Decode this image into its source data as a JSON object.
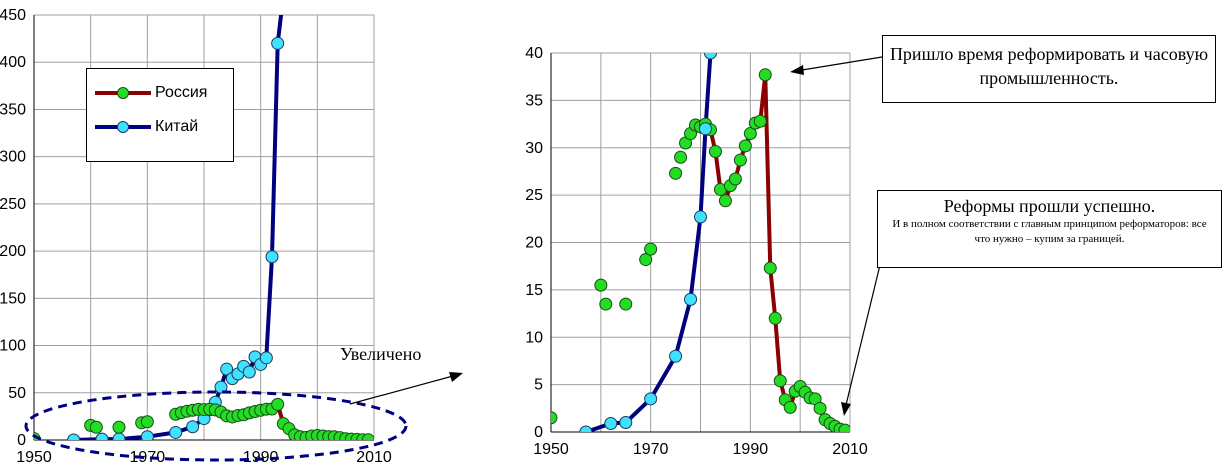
{
  "chart_data": [
    {
      "type": "line",
      "xlim": [
        1950,
        2010
      ],
      "ylim": [
        0,
        450
      ],
      "x_ticks": [
        "1950",
        "1970",
        "1990",
        "2010"
      ],
      "y_ticks": [
        "0",
        "50",
        "100",
        "150",
        "200",
        "250",
        "300",
        "350",
        "400",
        "450"
      ],
      "grid": true,
      "legend": "top-left",
      "series": [
        {
          "name": "Россия",
          "color": "#8b0000",
          "marker_color": "#22dd22",
          "x": [
            1950,
            1960,
            1961,
            1965,
            1969,
            1970,
            1975,
            1976,
            1977,
            1978,
            1979,
            1980,
            1981,
            1982,
            1983,
            1984,
            1985,
            1986,
            1987,
            1988,
            1989,
            1990,
            1991,
            1992,
            1993,
            1994,
            1995,
            1996,
            1997,
            1998,
            1999,
            2000,
            2001,
            2002,
            2003,
            2004,
            2005,
            2006,
            2007,
            2008,
            2009
          ],
          "y": [
            1.5,
            15.5,
            13.5,
            13.5,
            18.2,
            19.3,
            27.3,
            29,
            30.5,
            31.5,
            32.4,
            32.2,
            32.5,
            31.9,
            29.6,
            25.6,
            24.4,
            26,
            26.7,
            28.7,
            30.2,
            31.5,
            32.6,
            32.8,
            37.7,
            17.3,
            12,
            5.4,
            3.4,
            2.6,
            4.3,
            4.8,
            4.2,
            3.6,
            3.5,
            2.5,
            1.3,
            0.9,
            0.6,
            0.3,
            0.2
          ]
        },
        {
          "name": "Китай",
          "color": "#000080",
          "marker_color": "#40e0ff",
          "x": [
            1957,
            1962,
            1965,
            1970,
            1975,
            1978,
            1980,
            1981,
            1982,
            1983,
            1984,
            1985,
            1986,
            1987,
            1988,
            1989,
            1990,
            1991,
            1992,
            1993,
            1994
          ],
          "y": [
            0,
            0.9,
            1,
            3.5,
            8,
            14,
            22.7,
            32,
            40,
            56,
            75,
            65,
            70,
            78,
            72,
            88,
            80,
            87,
            194,
            420,
            470
          ]
        }
      ]
    },
    {
      "type": "line",
      "xlim": [
        1950,
        2010
      ],
      "ylim": [
        0,
        40
      ],
      "x_ticks": [
        "1950",
        "1970",
        "1990",
        "2010"
      ],
      "y_ticks": [
        "0",
        "5",
        "10",
        "15",
        "20",
        "25",
        "30",
        "35",
        "40"
      ],
      "grid": true,
      "annotations": [
        "Пришло время реформировать и часовую промышленность.",
        "Реформы прошли  успешно.",
        "И в полном соответствии с главным принципом реформаторов: все что нужно – купим за границей."
      ]
    }
  ],
  "zoom_label": "Увеличено"
}
